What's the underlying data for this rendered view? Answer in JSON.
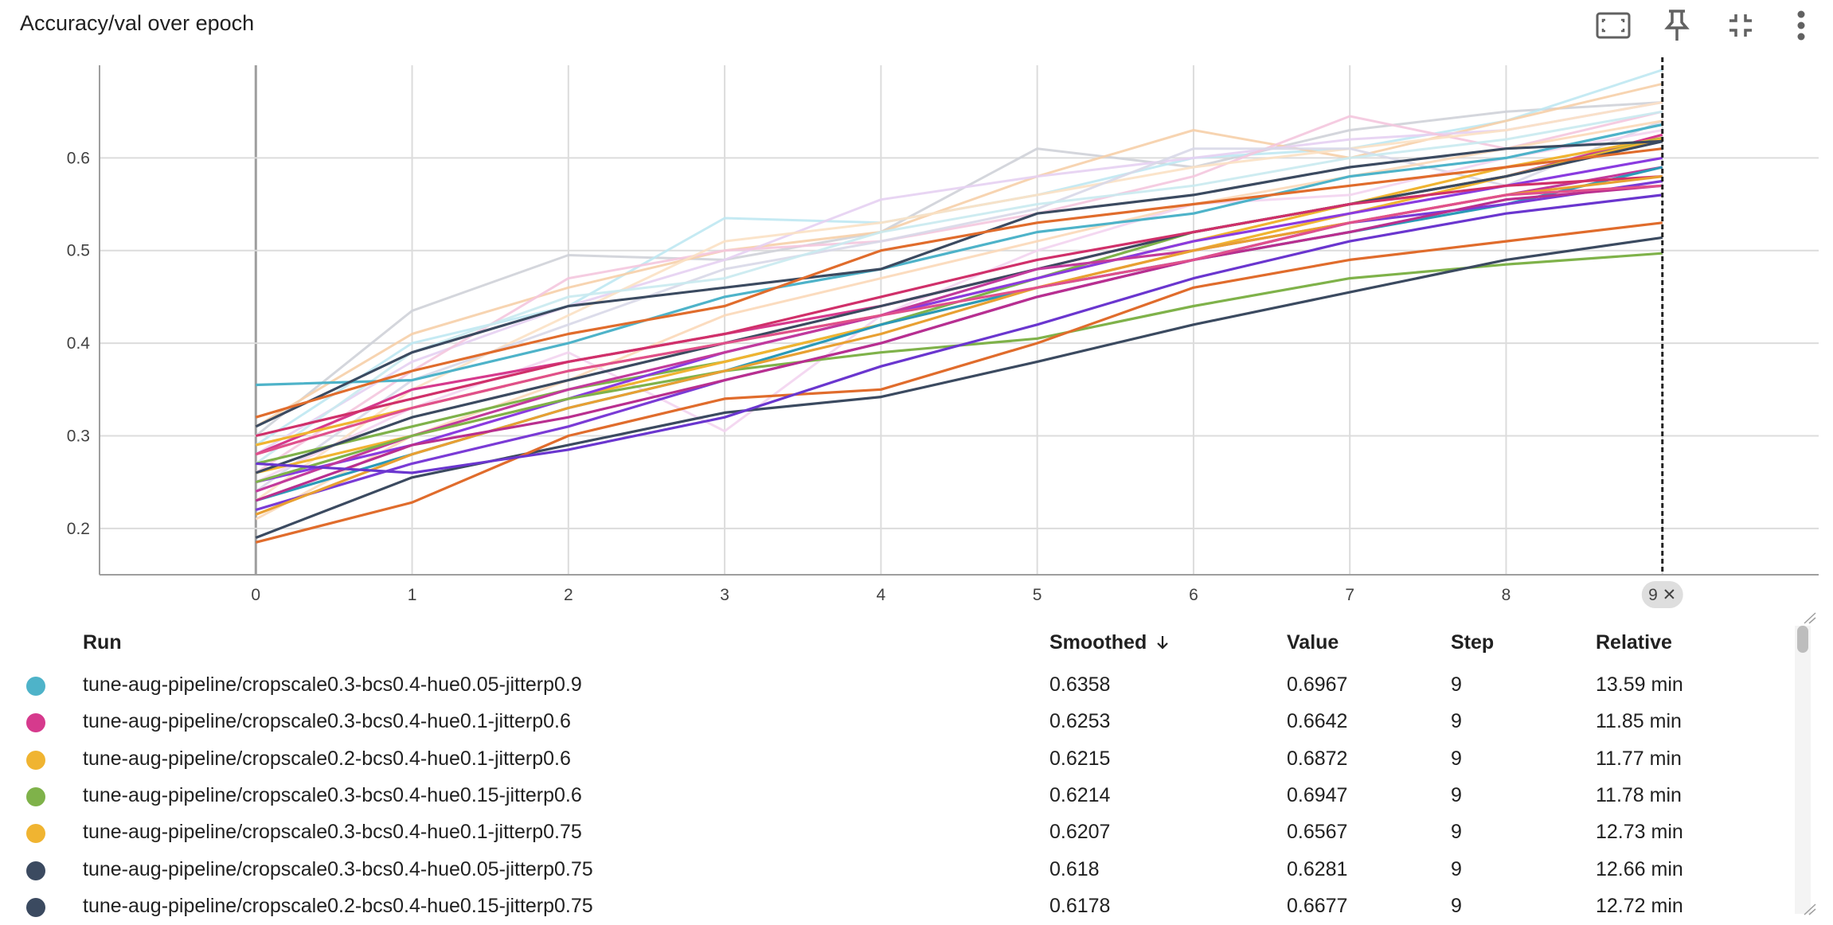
{
  "card": {
    "title": "Accuracy/val over epoch",
    "toolbar": {
      "fit_icon": "fit-to-domain-icon",
      "pin_icon": "pin-icon",
      "collapse_icon": "collapse-icon",
      "more_icon": "more-vert-icon"
    }
  },
  "chart_data": {
    "type": "line",
    "title": "Accuracy/val over epoch",
    "xlabel": "",
    "ylabel": "",
    "x": [
      0,
      1,
      2,
      3,
      4,
      5,
      6,
      7,
      8,
      9
    ],
    "xlim": [
      -1,
      10
    ],
    "ylim": [
      0.15,
      0.7
    ],
    "xticks": [
      "0",
      "1",
      "2",
      "3",
      "4",
      "5",
      "6",
      "7",
      "8"
    ],
    "yticks": [
      0.2,
      0.3,
      0.4,
      0.5,
      0.6
    ],
    "grid": true,
    "hover_step_label": "9 ✕",
    "series": [
      {
        "color": "#4eb3c9",
        "values": [
          0.355,
          0.36,
          0.4,
          0.45,
          0.48,
          0.52,
          0.54,
          0.58,
          0.6,
          0.636
        ]
      },
      {
        "color": "#d63a8d",
        "values": [
          0.28,
          0.35,
          0.38,
          0.41,
          0.44,
          0.48,
          0.52,
          0.55,
          0.58,
          0.625
        ]
      },
      {
        "color": "#f0b431",
        "values": [
          0.29,
          0.33,
          0.37,
          0.4,
          0.43,
          0.47,
          0.51,
          0.55,
          0.59,
          0.6215
        ]
      },
      {
        "color": "#7fb24a",
        "values": [
          0.27,
          0.31,
          0.35,
          0.38,
          0.42,
          0.47,
          0.52,
          0.55,
          0.58,
          0.6214
        ]
      },
      {
        "color": "#f0b431",
        "values": [
          0.26,
          0.3,
          0.34,
          0.38,
          0.42,
          0.46,
          0.5,
          0.54,
          0.58,
          0.6207
        ]
      },
      {
        "color": "#3b4a60",
        "values": [
          0.31,
          0.39,
          0.44,
          0.46,
          0.48,
          0.54,
          0.56,
          0.59,
          0.61,
          0.618
        ]
      },
      {
        "color": "#3b4a60",
        "values": [
          0.26,
          0.32,
          0.36,
          0.4,
          0.44,
          0.48,
          0.52,
          0.55,
          0.58,
          0.6178
        ]
      },
      {
        "color": "#e06c2c",
        "values": [
          0.32,
          0.37,
          0.41,
          0.44,
          0.5,
          0.53,
          0.55,
          0.57,
          0.59,
          0.61
        ]
      },
      {
        "color": "#8a3be0",
        "values": [
          0.25,
          0.29,
          0.34,
          0.39,
          0.43,
          0.47,
          0.51,
          0.54,
          0.57,
          0.6
        ]
      },
      {
        "color": "#c23a9c",
        "values": [
          0.24,
          0.3,
          0.35,
          0.39,
          0.43,
          0.48,
          0.5,
          0.53,
          0.56,
          0.59
        ]
      },
      {
        "color": "#2b9ab8",
        "values": [
          0.23,
          0.28,
          0.33,
          0.37,
          0.42,
          0.46,
          0.49,
          0.52,
          0.55,
          0.59
        ]
      },
      {
        "color": "#d0306a",
        "values": [
          0.3,
          0.34,
          0.38,
          0.41,
          0.45,
          0.49,
          0.52,
          0.55,
          0.57,
          0.58
        ]
      },
      {
        "color": "#7a3bd6",
        "values": [
          0.22,
          0.27,
          0.31,
          0.36,
          0.4,
          0.45,
          0.49,
          0.53,
          0.55,
          0.575
        ]
      },
      {
        "color": "#7fb24a",
        "values": [
          0.25,
          0.3,
          0.34,
          0.37,
          0.39,
          0.405,
          0.44,
          0.47,
          0.485,
          0.497
        ]
      },
      {
        "color": "#3b4a60",
        "values": [
          0.19,
          0.255,
          0.29,
          0.325,
          0.342,
          0.38,
          0.42,
          0.455,
          0.49,
          0.514
        ]
      },
      {
        "color": "#e06c2c",
        "values": [
          0.185,
          0.228,
          0.3,
          0.34,
          0.35,
          0.4,
          0.46,
          0.49,
          0.51,
          0.53
        ]
      },
      {
        "color": "#e8a032",
        "values": [
          0.215,
          0.28,
          0.33,
          0.37,
          0.41,
          0.46,
          0.5,
          0.53,
          0.56,
          0.58
        ]
      },
      {
        "color": "#b92f8f",
        "values": [
          0.23,
          0.29,
          0.32,
          0.36,
          0.4,
          0.45,
          0.49,
          0.52,
          0.555,
          0.57
        ]
      },
      {
        "color": "#6a36cf",
        "values": [
          0.27,
          0.26,
          0.285,
          0.32,
          0.375,
          0.42,
          0.47,
          0.51,
          0.54,
          0.56
        ]
      },
      {
        "color": "#e0508c",
        "values": [
          0.28,
          0.33,
          0.37,
          0.4,
          0.43,
          0.46,
          0.49,
          0.53,
          0.56,
          0.57
        ]
      },
      {
        "color": "#cfd2d8",
        "values": [
          0.3,
          0.435,
          0.495,
          0.49,
          0.52,
          0.61,
          0.59,
          0.63,
          0.65,
          0.66
        ]
      },
      {
        "color": "#bfe8f2",
        "values": [
          0.29,
          0.4,
          0.44,
          0.535,
          0.53,
          0.56,
          0.6,
          0.61,
          0.64,
          0.695
        ]
      },
      {
        "color": "#f6cfa8",
        "values": [
          0.31,
          0.41,
          0.46,
          0.5,
          0.52,
          0.58,
          0.63,
          0.6,
          0.64,
          0.68
        ]
      },
      {
        "color": "#e6d0f2",
        "values": [
          0.28,
          0.38,
          0.44,
          0.49,
          0.555,
          0.58,
          0.6,
          0.62,
          0.63,
          0.66
        ]
      },
      {
        "color": "#f4c6de",
        "values": [
          0.26,
          0.37,
          0.47,
          0.5,
          0.51,
          0.54,
          0.58,
          0.645,
          0.61,
          0.65
        ]
      },
      {
        "color": "#fbe1c4",
        "values": [
          0.23,
          0.35,
          0.43,
          0.51,
          0.53,
          0.56,
          0.59,
          0.61,
          0.63,
          0.66
        ]
      },
      {
        "color": "#d8d8e8",
        "values": [
          0.24,
          0.36,
          0.42,
          0.48,
          0.51,
          0.545,
          0.61,
          0.61,
          0.57,
          0.64
        ]
      },
      {
        "color": "#c9eaf0",
        "values": [
          0.27,
          0.39,
          0.45,
          0.47,
          0.52,
          0.55,
          0.57,
          0.6,
          0.62,
          0.65
        ]
      },
      {
        "color": "#fbd8b8",
        "values": [
          0.21,
          0.3,
          0.36,
          0.43,
          0.47,
          0.51,
          0.55,
          0.58,
          0.61,
          0.64
        ]
      },
      {
        "color": "#f3d4f0",
        "values": [
          0.25,
          0.33,
          0.39,
          0.305,
          0.43,
          0.5,
          0.55,
          0.56,
          0.6,
          0.63
        ]
      }
    ]
  },
  "table": {
    "headers": {
      "run": "Run",
      "smoothed": "Smoothed",
      "sort_icon": "arrow-down-icon",
      "value": "Value",
      "step": "Step",
      "relative": "Relative"
    },
    "rows": [
      {
        "color": "#4eb3c9",
        "run": "tune-aug-pipeline/cropscale0.3-bcs0.4-hue0.05-jitterp0.9",
        "smoothed": "0.6358",
        "value": "0.6967",
        "step": "9",
        "relative": "13.59 min"
      },
      {
        "color": "#d63a8d",
        "run": "tune-aug-pipeline/cropscale0.3-bcs0.4-hue0.1-jitterp0.6",
        "smoothed": "0.6253",
        "value": "0.6642",
        "step": "9",
        "relative": "11.85 min"
      },
      {
        "color": "#f0b431",
        "run": "tune-aug-pipeline/cropscale0.2-bcs0.4-hue0.1-jitterp0.6",
        "smoothed": "0.6215",
        "value": "0.6872",
        "step": "9",
        "relative": "11.77 min"
      },
      {
        "color": "#7fb24a",
        "run": "tune-aug-pipeline/cropscale0.3-bcs0.4-hue0.15-jitterp0.6",
        "smoothed": "0.6214",
        "value": "0.6947",
        "step": "9",
        "relative": "11.78 min"
      },
      {
        "color": "#f0b431",
        "run": "tune-aug-pipeline/cropscale0.3-bcs0.4-hue0.1-jitterp0.75",
        "smoothed": "0.6207",
        "value": "0.6567",
        "step": "9",
        "relative": "12.73 min"
      },
      {
        "color": "#3b4a60",
        "run": "tune-aug-pipeline/cropscale0.3-bcs0.4-hue0.05-jitterp0.75",
        "smoothed": "0.618",
        "value": "0.6281",
        "step": "9",
        "relative": "12.66 min"
      },
      {
        "color": "#3b4a60",
        "run": "tune-aug-pipeline/cropscale0.2-bcs0.4-hue0.15-jitterp0.75",
        "smoothed": "0.6178",
        "value": "0.6677",
        "step": "9",
        "relative": "12.72 min"
      }
    ]
  }
}
